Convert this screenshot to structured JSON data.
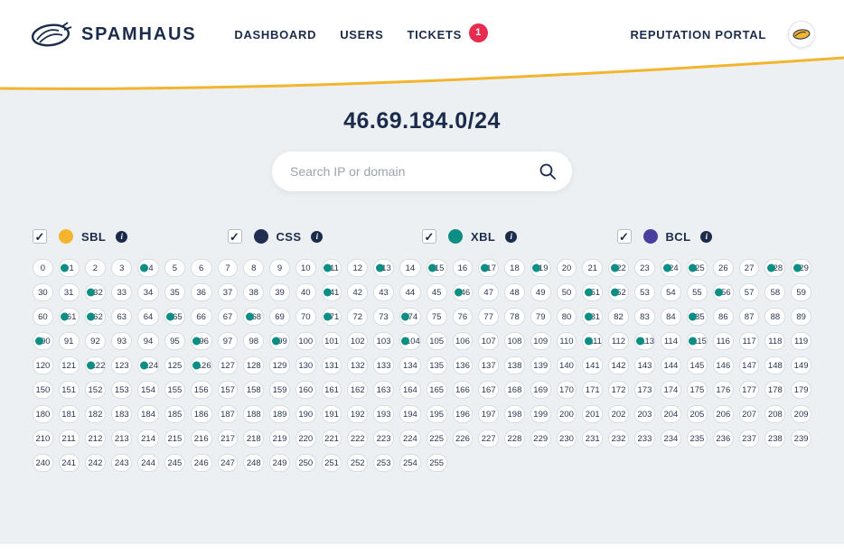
{
  "header": {
    "logo_text": "SPAMHAUS",
    "nav": [
      {
        "label": "DASHBOARD"
      },
      {
        "label": "USERS"
      },
      {
        "label": "TICKETS",
        "badge": "1"
      }
    ],
    "portal_label": "REPUTATION PORTAL"
  },
  "main": {
    "title": "46.69.184.0/24",
    "search": {
      "placeholder": "Search IP or domain"
    },
    "filters": [
      {
        "label": "SBL",
        "color": "#f2b52d",
        "checked": true
      },
      {
        "label": "CSS",
        "color": "#222d52",
        "checked": true
      },
      {
        "label": "XBL",
        "color": "#0d8e84",
        "checked": true
      },
      {
        "label": "BCL",
        "color": "#4a3e9e",
        "checked": true
      }
    ],
    "grid": {
      "count": 256,
      "marker_color": "#0d8e84",
      "marked": [
        1,
        4,
        11,
        13,
        15,
        17,
        19,
        22,
        24,
        25,
        28,
        29,
        32,
        41,
        46,
        51,
        52,
        56,
        61,
        62,
        65,
        68,
        71,
        74,
        81,
        85,
        90,
        96,
        99,
        104,
        111,
        113,
        115,
        122,
        124,
        126
      ]
    }
  },
  "icons": {
    "check": "✓",
    "info": "i"
  },
  "colors": {
    "accent_yellow": "#f2b52d",
    "navy": "#1b2b4b",
    "badge_red": "#e62c4f",
    "teal": "#0d8e84",
    "background": "#edf0f2"
  }
}
